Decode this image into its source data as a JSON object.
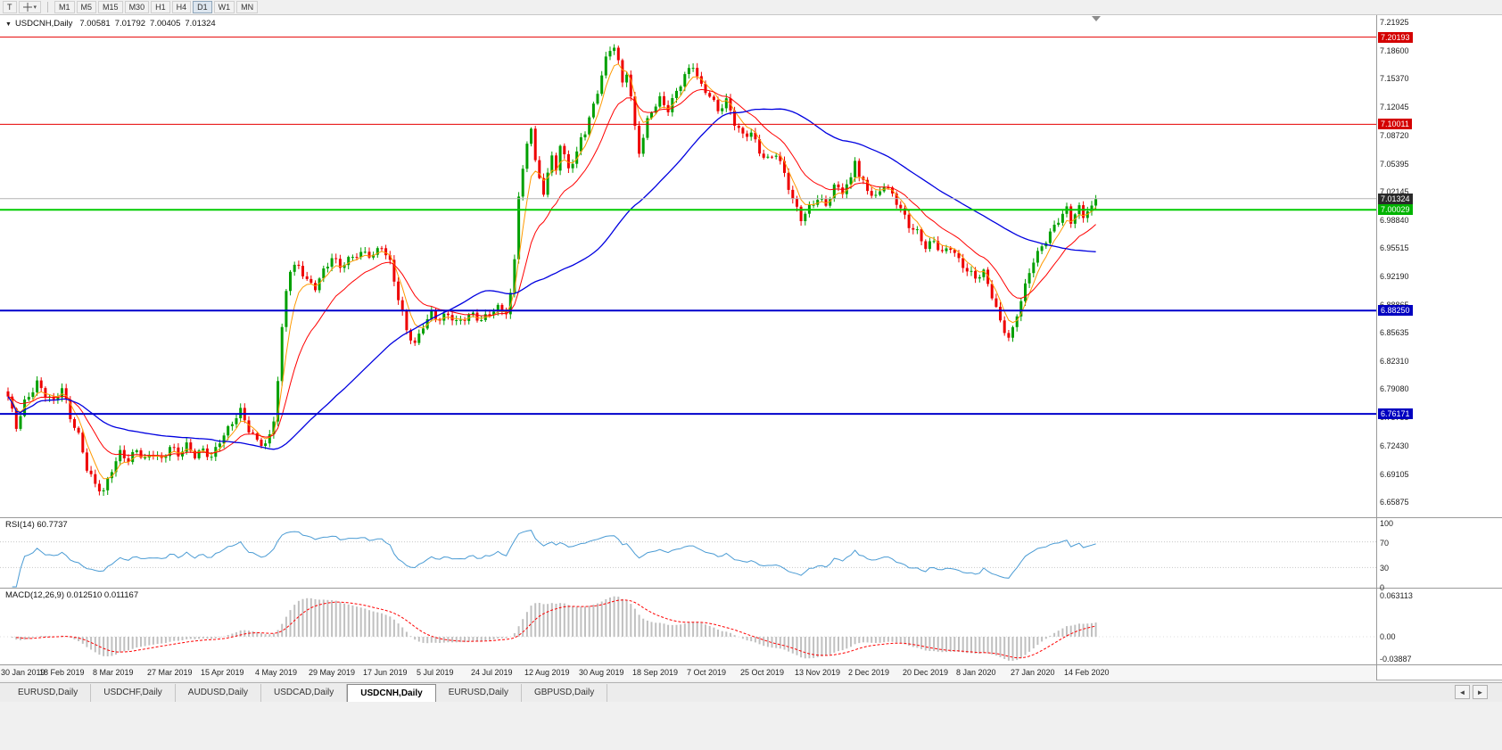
{
  "toolbar": {
    "text_tool_label": "T",
    "cursor_tool": "crosshair",
    "dropdown_glyph": "▾",
    "timeframes": [
      "M1",
      "M5",
      "M15",
      "M30",
      "H1",
      "H4",
      "D1",
      "W1",
      "MN"
    ],
    "active_timeframe": "D1"
  },
  "chart": {
    "title_arrow": "▼",
    "symbol": "USDCNH,Daily",
    "open": "7.00581",
    "high": "7.01792",
    "low": "7.00405",
    "close": "7.01324",
    "price_axis_labels": [
      "7.21925",
      "7.18600",
      "7.15370",
      "7.12045",
      "7.08720",
      "7.05395",
      "7.02145",
      "6.98840",
      "6.95515",
      "6.92190",
      "6.88865",
      "6.85635",
      "6.82310",
      "6.79080",
      "6.75755",
      "6.72430",
      "6.69105",
      "6.65875"
    ],
    "badges": [
      {
        "label": "7.20193",
        "price": 7.20193,
        "bg": "#d40000",
        "fg": "#ffffff",
        "name": "resistance-upper"
      },
      {
        "label": "7.10011",
        "price": 7.10011,
        "bg": "#d40000",
        "fg": "#ffffff",
        "name": "resistance-lower"
      },
      {
        "label": "7.01324",
        "price": 7.01324,
        "bg": "#2a2a2a",
        "fg": "#ffffff",
        "name": "current-price"
      },
      {
        "label": "7.00029",
        "price": 7.00029,
        "bg": "#00b400",
        "fg": "#ffffff",
        "name": "support-green"
      },
      {
        "label": "6.88250",
        "price": 6.8825,
        "bg": "#0000c0",
        "fg": "#ffffff",
        "name": "support-blue-upper"
      },
      {
        "label": "6.76171",
        "price": 6.76171,
        "bg": "#0000c0",
        "fg": "#ffffff",
        "name": "support-blue-lower"
      }
    ]
  },
  "indicators": {
    "rsi": {
      "label": "RSI(14) 60.7737",
      "axis_labels": [
        {
          "text": "100",
          "value": 100
        },
        {
          "text": "70",
          "value": 70
        },
        {
          "text": "30",
          "value": 30
        },
        {
          "text": "0",
          "value": 0
        }
      ],
      "levels": [
        70,
        30
      ],
      "line_color": "#4a9bd4"
    },
    "macd": {
      "label": "MACD(12,26,9) 0.012510 0.011167",
      "axis_labels": [
        "0.063113",
        "0.00",
        "-0.03887"
      ],
      "hist_color": "#c0c0c0",
      "signal_color": "#ff0000"
    }
  },
  "time_axis": {
    "labels": [
      "30 Jan 2019",
      "18 Feb 2019",
      "8 Mar 2019",
      "27 Mar 2019",
      "15 Apr 2019",
      "4 May 2019",
      "29 May 2019",
      "17 Jun 2019",
      "5 Jul 2019",
      "24 Jul 2019",
      "12 Aug 2019",
      "30 Aug 2019",
      "18 Sep 2019",
      "7 Oct 2019",
      "25 Oct 2019",
      "13 Nov 2019",
      "2 Dec 2019",
      "20 Dec 2019",
      "8 Jan 2020",
      "27 Jan 2020",
      "14 Feb 2020"
    ]
  },
  "tabs": {
    "items": [
      {
        "label": "EURUSD,Daily",
        "active": false
      },
      {
        "label": "USDCHF,Daily",
        "active": false
      },
      {
        "label": "AUDUSD,Daily",
        "active": false
      },
      {
        "label": "USDCAD,Daily",
        "active": false
      },
      {
        "label": "USDCNH,Daily",
        "active": true
      },
      {
        "label": "EURUSD,Daily",
        "active": false
      },
      {
        "label": "GBPUSD,Daily",
        "active": false
      }
    ],
    "scroll_left": "◄",
    "scroll_right": "►"
  },
  "chart_data": {
    "type": "candlestick",
    "symbol": "USDCNH",
    "timeframe": "Daily",
    "current_ohlc": {
      "open": 7.00581,
      "high": 7.01792,
      "low": 7.00405,
      "close": 7.01324
    },
    "bars_total": 263,
    "bars_per_time_label": 13,
    "y_axis_range": [
      6.641,
      7.2276
    ],
    "colors": {
      "up": "#00a000",
      "down": "#ee0000",
      "ma_fast": "#ff9900",
      "ma_mid": "#ff0000",
      "ma_slow": "#0000e0"
    },
    "horizontal_lines": [
      {
        "price": 7.20193,
        "color": "#e60000",
        "width": 1
      },
      {
        "price": 7.10011,
        "color": "#e60000",
        "width": 1
      },
      {
        "price": 7.00029,
        "color": "#00cc00",
        "width": 2
      },
      {
        "price": 6.8825,
        "color": "#0000cc",
        "width": 2
      },
      {
        "price": 6.76171,
        "color": "#0000cc",
        "width": 2
      }
    ],
    "bid_line": {
      "price": 7.01324,
      "color": "#b4b4b4"
    },
    "moving_averages": [
      {
        "period": 5,
        "method": "ema",
        "color_key": "ma_fast"
      },
      {
        "period": 15,
        "method": "ema",
        "color_key": "ma_mid"
      },
      {
        "period": 50,
        "method": "sma",
        "color_key": "ma_slow"
      }
    ],
    "rsi": {
      "period": 14,
      "current": 60.7737
    },
    "macd": {
      "fast": 12,
      "slow": 26,
      "signal": 9,
      "current_main": 0.01251,
      "current_signal": 0.011167
    },
    "price_anchors": [
      [
        0,
        6.78
      ],
      [
        2,
        6.745
      ],
      [
        4,
        6.775
      ],
      [
        7,
        6.8
      ],
      [
        9,
        6.786
      ],
      [
        11,
        6.776
      ],
      [
        13,
        6.79
      ],
      [
        15,
        6.756
      ],
      [
        17,
        6.736
      ],
      [
        19,
        6.7
      ],
      [
        21,
        6.681
      ],
      [
        23,
        6.672
      ],
      [
        25,
        6.696
      ],
      [
        27,
        6.714
      ],
      [
        29,
        6.706
      ],
      [
        31,
        6.72
      ],
      [
        33,
        6.71
      ],
      [
        35,
        6.718
      ],
      [
        37,
        6.708
      ],
      [
        39,
        6.722
      ],
      [
        41,
        6.712
      ],
      [
        43,
        6.724
      ],
      [
        45,
        6.714
      ],
      [
        47,
        6.722
      ],
      [
        49,
        6.712
      ],
      [
        51,
        6.73
      ],
      [
        53,
        6.742
      ],
      [
        55,
        6.757
      ],
      [
        56,
        6.764
      ],
      [
        58,
        6.744
      ],
      [
        60,
        6.732
      ],
      [
        62,
        6.728
      ],
      [
        63,
        6.736
      ],
      [
        64,
        6.756
      ],
      [
        65,
        6.8
      ],
      [
        66,
        6.858
      ],
      [
        67,
        6.905
      ],
      [
        68,
        6.928
      ],
      [
        70,
        6.934
      ],
      [
        72,
        6.918
      ],
      [
        74,
        6.912
      ],
      [
        76,
        6.93
      ],
      [
        78,
        6.944
      ],
      [
        80,
        6.932
      ],
      [
        82,
        6.94
      ],
      [
        84,
        6.948
      ],
      [
        86,
        6.951
      ],
      [
        88,
        6.949
      ],
      [
        90,
        6.959
      ],
      [
        92,
        6.937
      ],
      [
        94,
        6.895
      ],
      [
        96,
        6.858
      ],
      [
        98,
        6.843
      ],
      [
        100,
        6.867
      ],
      [
        102,
        6.881
      ],
      [
        104,
        6.872
      ],
      [
        106,
        6.877
      ],
      [
        108,
        6.866
      ],
      [
        110,
        6.873
      ],
      [
        112,
        6.879
      ],
      [
        114,
        6.873
      ],
      [
        116,
        6.881
      ],
      [
        118,
        6.885
      ],
      [
        120,
        6.879
      ],
      [
        121,
        6.898
      ],
      [
        122,
        6.94
      ],
      [
        123,
        7.018
      ],
      [
        124,
        7.046
      ],
      [
        125,
        7.076
      ],
      [
        126,
        7.1
      ],
      [
        127,
        7.06
      ],
      [
        128,
        7.036
      ],
      [
        129,
        7.022
      ],
      [
        130,
        7.046
      ],
      [
        131,
        7.06
      ],
      [
        132,
        7.046
      ],
      [
        133,
        7.076
      ],
      [
        134,
        7.06
      ],
      [
        135,
        7.046
      ],
      [
        136,
        7.056
      ],
      [
        137,
        7.066
      ],
      [
        138,
        7.083
      ],
      [
        139,
        7.093
      ],
      [
        140,
        7.11
      ],
      [
        141,
        7.123
      ],
      [
        142,
        7.14
      ],
      [
        143,
        7.16
      ],
      [
        144,
        7.176
      ],
      [
        145,
        7.186
      ],
      [
        146,
        7.191
      ],
      [
        147,
        7.17
      ],
      [
        148,
        7.146
      ],
      [
        149,
        7.16
      ],
      [
        150,
        7.13
      ],
      [
        151,
        7.096
      ],
      [
        152,
        7.07
      ],
      [
        153,
        7.086
      ],
      [
        154,
        7.106
      ],
      [
        155,
        7.118
      ],
      [
        157,
        7.13
      ],
      [
        159,
        7.116
      ],
      [
        161,
        7.136
      ],
      [
        163,
        7.156
      ],
      [
        165,
        7.17
      ],
      [
        167,
        7.146
      ],
      [
        169,
        7.136
      ],
      [
        171,
        7.116
      ],
      [
        173,
        7.126
      ],
      [
        175,
        7.1
      ],
      [
        177,
        7.086
      ],
      [
        179,
        7.092
      ],
      [
        181,
        7.07
      ],
      [
        183,
        7.06
      ],
      [
        185,
        7.066
      ],
      [
        187,
        7.04
      ],
      [
        189,
        7.01
      ],
      [
        191,
        6.99
      ],
      [
        193,
        7.004
      ],
      [
        195,
        7.016
      ],
      [
        197,
        7.006
      ],
      [
        199,
        7.026
      ],
      [
        201,
        7.02
      ],
      [
        203,
        7.034
      ],
      [
        204,
        7.06
      ],
      [
        205,
        7.04
      ],
      [
        207,
        7.026
      ],
      [
        209,
        7.016
      ],
      [
        211,
        7.03
      ],
      [
        213,
        7.016
      ],
      [
        215,
        6.999
      ],
      [
        217,
        6.981
      ],
      [
        219,
        6.975
      ],
      [
        221,
        6.959
      ],
      [
        223,
        6.965
      ],
      [
        225,
        6.949
      ],
      [
        227,
        6.955
      ],
      [
        229,
        6.939
      ],
      [
        231,
        6.929
      ],
      [
        233,
        6.923
      ],
      [
        235,
        6.929
      ],
      [
        237,
        6.901
      ],
      [
        239,
        6.868
      ],
      [
        241,
        6.848
      ],
      [
        242,
        6.858
      ],
      [
        243,
        6.877
      ],
      [
        244,
        6.894
      ],
      [
        245,
        6.911
      ],
      [
        246,
        6.929
      ],
      [
        247,
        6.943
      ],
      [
        249,
        6.959
      ],
      [
        251,
        6.973
      ],
      [
        253,
        6.987
      ],
      [
        255,
        6.999
      ],
      [
        256,
        6.985
      ],
      [
        257,
        6.995
      ],
      [
        258,
        7.005
      ],
      [
        259,
        6.991
      ],
      [
        260,
        6.999
      ],
      [
        261,
        7.005
      ],
      [
        262,
        7.013
      ]
    ]
  }
}
